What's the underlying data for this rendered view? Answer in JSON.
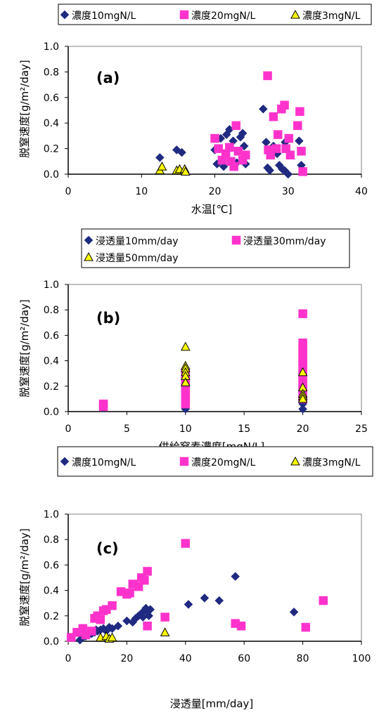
{
  "chart_data": [
    {
      "type": "scatter",
      "panel_label": "(a)",
      "xlabel": "水温[℃]",
      "ylabel": "脱窒速度[g/m²/day]",
      "xlim": [
        0,
        40
      ],
      "ylim": [
        0,
        1.0
      ],
      "x_ticks": [
        "0",
        "10",
        "20",
        "30",
        "40"
      ],
      "y_ticks": [
        "0.0",
        "0.2",
        "0.4",
        "0.6",
        "0.8",
        "1.0"
      ],
      "grid": false,
      "legend_position": "top",
      "series": [
        {
          "name": "濃度10mgN/L",
          "marker": "diamond",
          "color": "#1f2a80",
          "points": [
            [
              12.5,
              0.13
            ],
            [
              14.8,
              0.19
            ],
            [
              15.5,
              0.17
            ],
            [
              20.0,
              0.19
            ],
            [
              20.3,
              0.08
            ],
            [
              20.8,
              0.28
            ],
            [
              21.2,
              0.06
            ],
            [
              21.6,
              0.31
            ],
            [
              22.0,
              0.35
            ],
            [
              22.5,
              0.26
            ],
            [
              23.0,
              0.09
            ],
            [
              23.5,
              0.29
            ],
            [
              23.8,
              0.32
            ],
            [
              24.0,
              0.22
            ],
            [
              24.2,
              0.08
            ],
            [
              26.6,
              0.51
            ],
            [
              27.0,
              0.25
            ],
            [
              27.2,
              0.05
            ],
            [
              27.5,
              0.03
            ],
            [
              28.0,
              0.22
            ],
            [
              28.5,
              0.16
            ],
            [
              28.8,
              0.07
            ],
            [
              29.2,
              0.04
            ],
            [
              29.5,
              0.03
            ],
            [
              29.6,
              0.25
            ],
            [
              30.0,
              0.0
            ],
            [
              31.5,
              0.26
            ],
            [
              31.8,
              0.07
            ]
          ]
        },
        {
          "name": "濃度20mgN/L",
          "marker": "square",
          "color": "#ff33cc",
          "points": [
            [
              20.0,
              0.28
            ],
            [
              20.5,
              0.2
            ],
            [
              21.0,
              0.11
            ],
            [
              21.5,
              0.16
            ],
            [
              22.0,
              0.21
            ],
            [
              22.2,
              0.1
            ],
            [
              22.6,
              0.06
            ],
            [
              22.9,
              0.38
            ],
            [
              23.2,
              0.18
            ],
            [
              23.8,
              0.11
            ],
            [
              24.2,
              0.15
            ],
            [
              27.2,
              0.77
            ],
            [
              27.3,
              0.19
            ],
            [
              27.6,
              0.15
            ],
            [
              28.0,
              0.45
            ],
            [
              28.4,
              0.2
            ],
            [
              28.6,
              0.31
            ],
            [
              29.1,
              0.51
            ],
            [
              29.5,
              0.54
            ],
            [
              29.7,
              0.2
            ],
            [
              30.1,
              0.28
            ],
            [
              30.3,
              0.15
            ],
            [
              31.3,
              0.38
            ],
            [
              31.6,
              0.49
            ],
            [
              31.8,
              0.18
            ],
            [
              32.0,
              0.02
            ]
          ]
        },
        {
          "name": "濃度3mgN/L",
          "marker": "triangle",
          "color": "#ffff00",
          "points": [
            [
              12.5,
              0.03
            ],
            [
              12.8,
              0.06
            ],
            [
              14.8,
              0.03
            ],
            [
              15.2,
              0.04
            ],
            [
              15.9,
              0.04
            ],
            [
              16.0,
              0.02
            ]
          ]
        }
      ]
    },
    {
      "type": "scatter",
      "panel_label": "(b)",
      "xlabel": "供給窒素濃度[mgN/L]",
      "ylabel": "脱窒速度[g/m²/day]",
      "xlim": [
        0,
        25
      ],
      "ylim": [
        0,
        1.0
      ],
      "x_ticks": [
        "0",
        "5",
        "10",
        "15",
        "20",
        "25"
      ],
      "y_ticks": [
        "0.0",
        "0.2",
        "0.4",
        "0.6",
        "0.8",
        "1.0"
      ],
      "grid": false,
      "legend_position": "top",
      "series": [
        {
          "name": "浸透量10mm/day",
          "marker": "diamond",
          "color": "#1f2a80",
          "points": [
            [
              3,
              0.03
            ],
            [
              3,
              0.05
            ],
            [
              10,
              0.02
            ],
            [
              10,
              0.05
            ],
            [
              10,
              0.08
            ],
            [
              10,
              0.12
            ],
            [
              10,
              0.16
            ],
            [
              10,
              0.21
            ],
            [
              10,
              0.25
            ],
            [
              10,
              0.29
            ],
            [
              20,
              0.02
            ],
            [
              20,
              0.06
            ],
            [
              20,
              0.1
            ],
            [
              20,
              0.15
            ],
            [
              20,
              0.19
            ],
            [
              20,
              0.22
            ],
            [
              20,
              0.26
            ]
          ]
        },
        {
          "name": "浸透量30mm/day",
          "marker": "square",
          "color": "#ff33cc",
          "points": [
            [
              3,
              0.06
            ],
            [
              3,
              0.04
            ],
            [
              10,
              0.06
            ],
            [
              10,
              0.08
            ],
            [
              10,
              0.1
            ],
            [
              10,
              0.12
            ],
            [
              10,
              0.14
            ],
            [
              10,
              0.16
            ],
            [
              10,
              0.18
            ],
            [
              10,
              0.2
            ],
            [
              10,
              0.22
            ],
            [
              10,
              0.24
            ],
            [
              10,
              0.26
            ],
            [
              10,
              0.28
            ],
            [
              10,
              0.3
            ],
            [
              20,
              0.1
            ],
            [
              20,
              0.14
            ],
            [
              20,
              0.18
            ],
            [
              20,
              0.22
            ],
            [
              20,
              0.26
            ],
            [
              20,
              0.3
            ],
            [
              20,
              0.34
            ],
            [
              20,
              0.38
            ],
            [
              20,
              0.42
            ],
            [
              20,
              0.46
            ],
            [
              20,
              0.5
            ],
            [
              20,
              0.54
            ],
            [
              20,
              0.77
            ]
          ]
        },
        {
          "name": "浸透量50mm/day",
          "marker": "triangle",
          "color": "#ffff00",
          "points": [
            [
              10,
              0.51
            ],
            [
              10,
              0.36
            ],
            [
              10,
              0.34
            ],
            [
              10,
              0.31
            ],
            [
              10,
              0.28
            ],
            [
              10,
              0.23
            ],
            [
              20,
              0.31
            ],
            [
              20,
              0.19
            ],
            [
              20,
              0.14
            ],
            [
              20,
              0.12
            ],
            [
              20,
              0.1
            ]
          ]
        }
      ]
    },
    {
      "type": "scatter",
      "panel_label": "(c)",
      "xlabel": "浸透量[mm/day]",
      "ylabel": "脱窒速度[g/m²/day]",
      "xlim": [
        0,
        100
      ],
      "ylim": [
        0,
        1.0
      ],
      "x_ticks": [
        "0",
        "20",
        "40",
        "60",
        "80",
        "100"
      ],
      "y_ticks": [
        "0.0",
        "0.2",
        "0.4",
        "0.6",
        "0.8",
        "1.0"
      ],
      "grid": false,
      "legend_position": "top",
      "series": [
        {
          "name": "濃度10mgN/L",
          "marker": "diamond",
          "color": "#1f2a80",
          "points": [
            [
              4,
              0.01
            ],
            [
              5,
              0.03
            ],
            [
              6,
              0.04
            ],
            [
              7,
              0.05
            ],
            [
              8,
              0.06
            ],
            [
              9,
              0.07
            ],
            [
              9.5,
              0.09
            ],
            [
              10,
              0.08
            ],
            [
              11,
              0.09
            ],
            [
              12,
              0.1
            ],
            [
              13,
              0.08
            ],
            [
              14,
              0.11
            ],
            [
              15,
              0.1
            ],
            [
              17,
              0.12
            ],
            [
              20,
              0.16
            ],
            [
              22,
              0.15
            ],
            [
              23,
              0.18
            ],
            [
              24,
              0.2
            ],
            [
              25,
              0.22
            ],
            [
              25.5,
              0.19
            ],
            [
              26,
              0.24
            ],
            [
              26.5,
              0.26
            ],
            [
              27,
              0.23
            ],
            [
              27.5,
              0.2
            ],
            [
              28,
              0.25
            ],
            [
              41,
              0.29
            ],
            [
              46.5,
              0.34
            ],
            [
              51.5,
              0.32
            ],
            [
              57,
              0.51
            ],
            [
              77,
              0.23
            ]
          ]
        },
        {
          "name": "濃度20mgN/L",
          "marker": "square",
          "color": "#ff33cc",
          "points": [
            [
              1,
              0.03
            ],
            [
              3,
              0.07
            ],
            [
              5,
              0.1
            ],
            [
              6,
              0.05
            ],
            [
              8,
              0.08
            ],
            [
              9,
              0.18
            ],
            [
              10,
              0.2
            ],
            [
              11,
              0.17
            ],
            [
              12,
              0.24
            ],
            [
              13,
              0.25
            ],
            [
              15,
              0.28
            ],
            [
              18,
              0.39
            ],
            [
              20,
              0.37
            ],
            [
              21,
              0.38
            ],
            [
              22,
              0.45
            ],
            [
              24,
              0.43
            ],
            [
              25,
              0.5
            ],
            [
              26,
              0.48
            ],
            [
              27,
              0.55
            ],
            [
              27,
              0.12
            ],
            [
              33,
              0.19
            ],
            [
              40,
              0.77
            ],
            [
              57,
              0.14
            ],
            [
              59,
              0.12
            ],
            [
              81,
              0.11
            ],
            [
              87,
              0.32
            ]
          ]
        },
        {
          "name": "濃度3mgN/L",
          "marker": "triangle",
          "color": "#ffff00",
          "points": [
            [
              11,
              0.03
            ],
            [
              13,
              0.04
            ],
            [
              14,
              0.02
            ],
            [
              15,
              0.03
            ],
            [
              33,
              0.07
            ]
          ]
        }
      ]
    }
  ]
}
